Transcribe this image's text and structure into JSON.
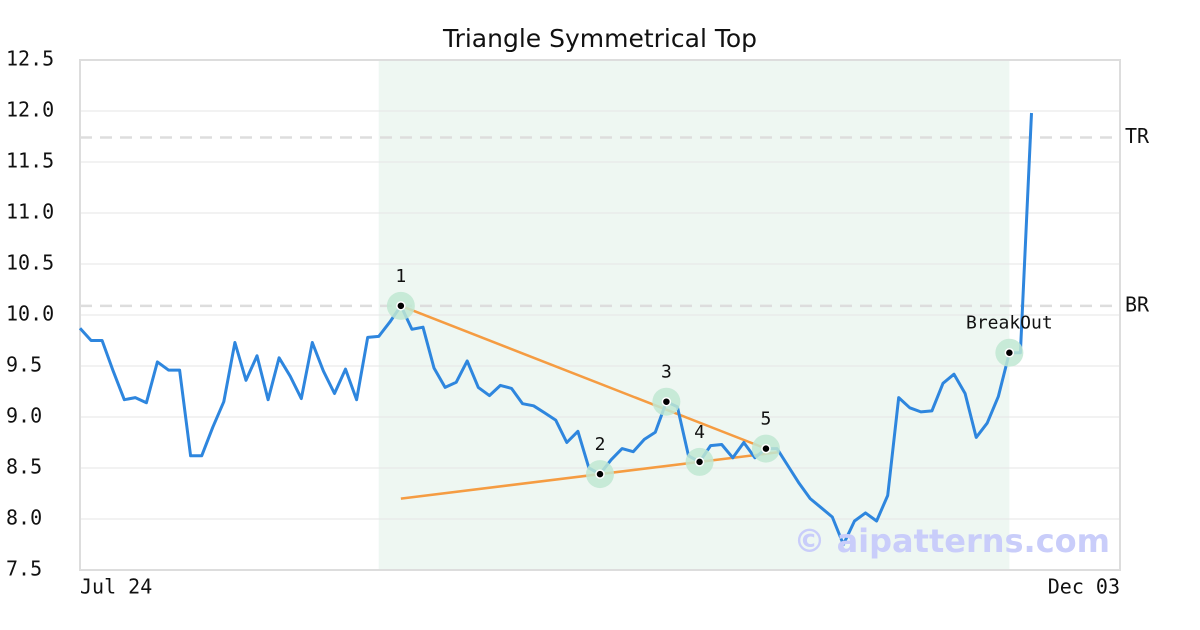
{
  "chart_data": {
    "type": "line",
    "title": "Triangle Symmetrical Top",
    "categories": [
      "Jul 24",
      null,
      null,
      null,
      null,
      null,
      null,
      null,
      null,
      null,
      null,
      null,
      null,
      null,
      null,
      null,
      null,
      null,
      null,
      null,
      null,
      null,
      null,
      null,
      null,
      null,
      null,
      null,
      null,
      null,
      null,
      null,
      null,
      null,
      null,
      null,
      null,
      null,
      null,
      null,
      null,
      null,
      null,
      null,
      null,
      null,
      null,
      null,
      null,
      null,
      null,
      null,
      null,
      null,
      null,
      null,
      null,
      null,
      null,
      null,
      null,
      null,
      null,
      null,
      null,
      null,
      null,
      null,
      null,
      null,
      null,
      null,
      null,
      null,
      null,
      null,
      null,
      null,
      null,
      null,
      null,
      null,
      null,
      null,
      null,
      null,
      null,
      null,
      null,
      null,
      null,
      null,
      null,
      null,
      "Dec 03"
    ],
    "series": [
      {
        "color": "#2e86de",
        "values": [
          9.87,
          9.75,
          9.75,
          9.45,
          9.17,
          9.19,
          9.14,
          9.54,
          9.46,
          9.46,
          8.62,
          8.62,
          8.9,
          9.15,
          9.73,
          9.36,
          9.6,
          9.17,
          9.58,
          9.4,
          9.18,
          9.73,
          9.45,
          9.23,
          9.47,
          9.17,
          9.78,
          9.79,
          9.93,
          10.09,
          9.86,
          9.88,
          9.48,
          9.29,
          9.34,
          9.55,
          9.29,
          9.21,
          9.31,
          9.28,
          9.13,
          9.11,
          9.04,
          8.97,
          8.75,
          8.86,
          8.5,
          8.44,
          8.58,
          8.69,
          8.66,
          8.78,
          8.85,
          9.15,
          9.1,
          8.62,
          8.56,
          8.72,
          8.73,
          8.6,
          8.75,
          8.6,
          8.69,
          8.69,
          8.52,
          8.35,
          8.2,
          8.11,
          8.02,
          7.75,
          7.98,
          8.06,
          7.98,
          8.23,
          9.19,
          9.09,
          9.05,
          9.06,
          9.33,
          9.42,
          9.23,
          8.8,
          8.94,
          9.2,
          9.63,
          9.63,
          11.98,
          null,
          null,
          null,
          null,
          null,
          null,
          null,
          null
        ]
      }
    ],
    "pattern_points": [
      {
        "label": "1",
        "x": 29,
        "value": 10.09
      },
      {
        "label": "2",
        "x": 47,
        "value": 8.44
      },
      {
        "label": "3",
        "x": 53,
        "value": 9.15
      },
      {
        "label": "4",
        "x": 56,
        "value": 8.56
      },
      {
        "label": "5",
        "x": 62,
        "value": 8.69
      },
      {
        "label": "BreakOut",
        "x": 84,
        "value": 9.63
      }
    ],
    "trend_color": "#f59c42",
    "levels": [
      {
        "label": "TR",
        "value": 11.74
      },
      {
        "label": "BR",
        "value": 10.09
      }
    ],
    "ylim": [
      7.5,
      12.5
    ],
    "yticks": [
      7.5,
      {
        "value": 8,
        "label": "8.0"
      },
      8.5,
      {
        "value": 9,
        "label": "9.0"
      },
      9.5,
      {
        "value": 10,
        "label": "10.0"
      },
      10.5,
      {
        "value": 11,
        "label": "11.0"
      },
      11.5,
      {
        "value": 12,
        "label": "12.0"
      },
      12.5
    ],
    "grid": true,
    "watermark": "© aipatterns.com"
  }
}
